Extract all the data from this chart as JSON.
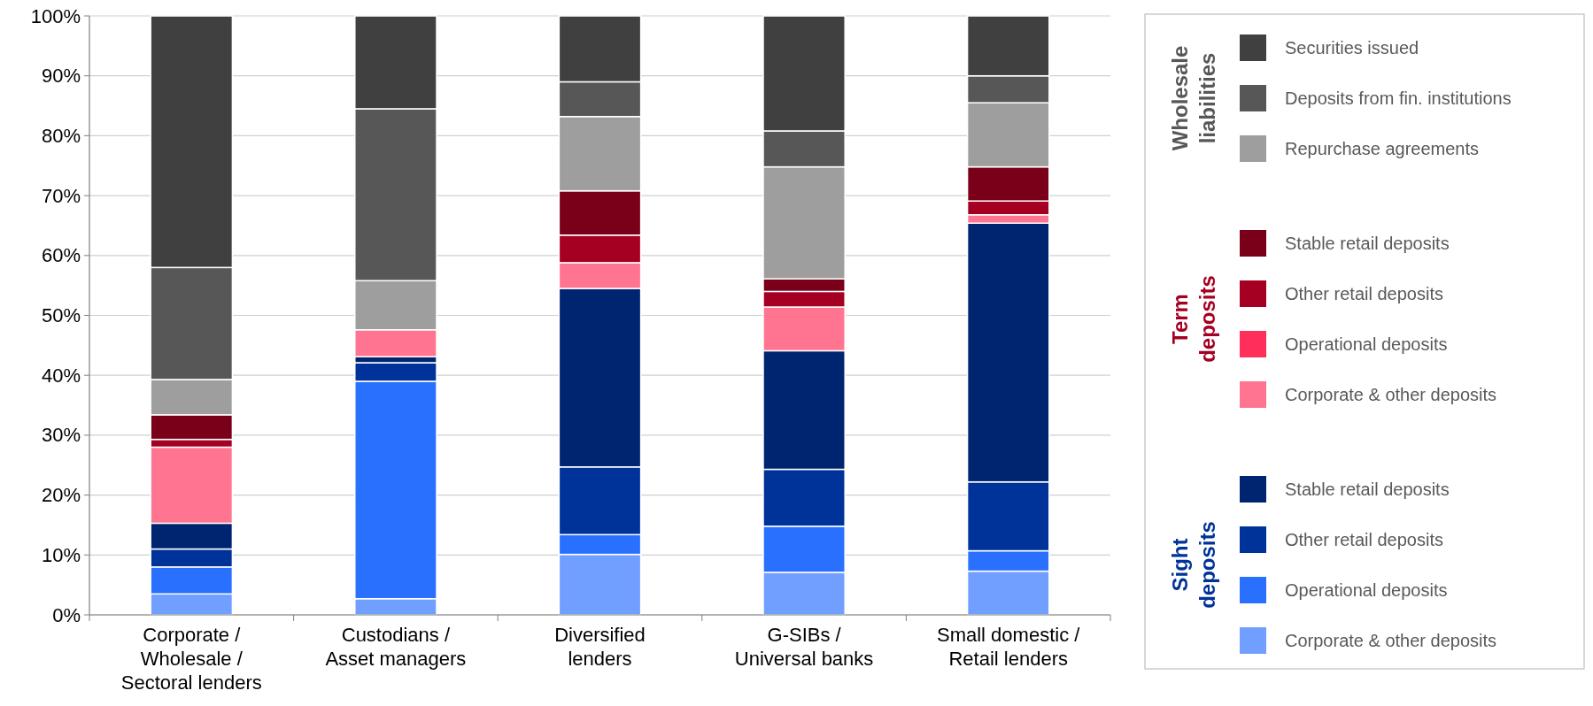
{
  "chart_data": {
    "type": "bar",
    "stacked": true,
    "categories": [
      "Corporate / Wholesale / Sectoral lenders",
      "Custodians / Asset managers",
      "Diversified lenders",
      "G-SIBs / Universal banks",
      "Small domestic / Retail lenders"
    ],
    "series": [
      {
        "name": "Corporate & other deposits",
        "color": "#709fff",
        "values": [
          3.5,
          2.7,
          10.1,
          7.1,
          7.3
        ]
      },
      {
        "name": "Operational deposits",
        "color": "#2970ff",
        "values": [
          4.5,
          36.3,
          3.3,
          7.7,
          3.4
        ]
      },
      {
        "name": "Other retail deposits",
        "color": "#003399",
        "values": [
          3,
          3.1,
          11.3,
          9.5,
          11.5
        ]
      },
      {
        "name": "Stable retail deposits",
        "color": "#002570",
        "values": [
          4.3,
          1,
          29.8,
          19.8,
          43.2
        ]
      },
      {
        "name": "Corporate & other deposits",
        "color": "#ff7591",
        "values": [
          12.7,
          4.5,
          4.3,
          7.3,
          1.4
        ]
      },
      {
        "name": "Operational deposits",
        "color": "#ff2e5b",
        "values": [
          0,
          0,
          0,
          0,
          0
        ]
      },
      {
        "name": "Other retail deposits",
        "color": "#a50021",
        "values": [
          1.3,
          0,
          4.6,
          2.6,
          2.3
        ]
      },
      {
        "name": "Stable retail deposits",
        "color": "#7a0019",
        "values": [
          4.1,
          0,
          7.4,
          2.1,
          5.7
        ]
      },
      {
        "name": "Repurchase agreements",
        "color": "#9e9e9e",
        "values": [
          5.9,
          8.2,
          12.4,
          18.7,
          10.7
        ]
      },
      {
        "name": "Deposits from fin. institutions",
        "color": "#575757",
        "values": [
          18.7,
          28.7,
          5.8,
          6,
          4.5
        ]
      },
      {
        "name": "Securities issued",
        "color": "#404040",
        "values": [
          42,
          15.5,
          11,
          19.2,
          10
        ]
      }
    ],
    "annotations": [
      "Sight deposits",
      "Term deposits",
      "Wholesale liabilities"
    ],
    "ylim": [
      0,
      100
    ],
    "yticks": [
      {
        "value": 0,
        "label": "0%"
      },
      {
        "value": 10,
        "label": "10%"
      },
      {
        "value": 20,
        "label": "20%"
      },
      {
        "value": 30,
        "label": "30%"
      },
      {
        "value": 40,
        "label": "40%"
      },
      {
        "value": 50,
        "label": "50%"
      },
      {
        "value": 60,
        "label": "60%"
      },
      {
        "value": 70,
        "label": "70%"
      },
      {
        "value": 80,
        "label": "80%"
      },
      {
        "value": 90,
        "label": "90%"
      },
      {
        "value": 100,
        "label": "100%"
      }
    ],
    "grid": "y",
    "legend": "right"
  }
}
